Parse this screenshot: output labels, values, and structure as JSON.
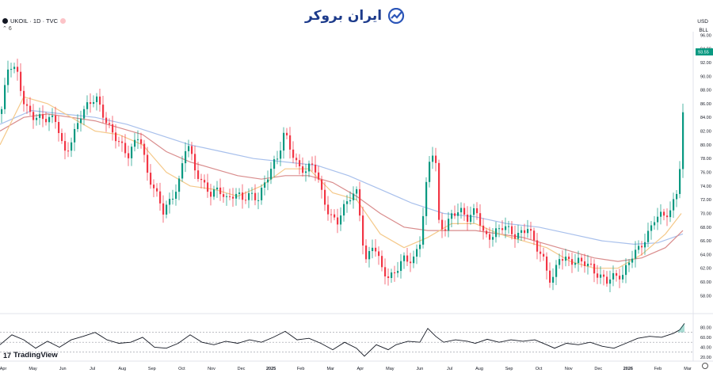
{
  "header": {
    "symbol": "UKOIL · 1D · TVC",
    "indicator_count": "6"
  },
  "brand": {
    "name": "ایران بروکر"
  },
  "currency": {
    "code": "USD",
    "unit": "BLL"
  },
  "footer": {
    "brand": "TradingView"
  },
  "colors": {
    "up": "#089981",
    "down": "#f23645",
    "ma_fast": "#f5c98a",
    "ma_mid": "#d98c8c",
    "ma_slow": "#a8c0ec",
    "osc": "#131722",
    "last_price": "#089981"
  },
  "chart_data": {
    "type": "line",
    "series": [
      {
        "name": "",
        "values": []
      }
    ],
    "ylim": [
      55.5,
      96.5
    ],
    "yticks": [
      58,
      60,
      62,
      64,
      66,
      68,
      70,
      72,
      74,
      76,
      78,
      80,
      82,
      84,
      86,
      88,
      90,
      92,
      94,
      96
    ],
    "ytick_labels": [
      "58.00",
      "60.00",
      "62.00",
      "64.00",
      "66.00",
      "68.00",
      "70.00",
      "72.00",
      "74.00",
      "76.00",
      "78.00",
      "80.00",
      "82.00",
      "84.00",
      "86.00",
      "88.00",
      "90.00",
      "92.00",
      "94.00",
      "96.00"
    ],
    "last_price": "93.55",
    "xtick_labels": [
      "Apr",
      "May",
      "Jun",
      "Jul",
      "Aug",
      "Sep",
      "Oct",
      "Nov",
      "Dec",
      "2025",
      "Feb",
      "Mar",
      "Apr",
      "May",
      "Jun",
      "Jul",
      "Aug",
      "Sep",
      "Oct",
      "Nov",
      "Dec",
      "2026",
      "Feb",
      "Mar"
    ],
    "price_points": [
      [
        0,
        84.5
      ],
      [
        10,
        91.5
      ],
      [
        20,
        90.5
      ],
      [
        30,
        86
      ],
      [
        40,
        84.5
      ],
      [
        55,
        83.5
      ],
      [
        70,
        83.5
      ],
      [
        80,
        79
      ],
      [
        90,
        81
      ],
      [
        100,
        84
      ],
      [
        110,
        85.5
      ],
      [
        120,
        87
      ],
      [
        130,
        84.5
      ],
      [
        140,
        82
      ],
      [
        150,
        80
      ],
      [
        160,
        78
      ],
      [
        175,
        82
      ],
      [
        185,
        76
      ],
      [
        195,
        73
      ],
      [
        205,
        70
      ],
      [
        215,
        72
      ],
      [
        225,
        75
      ],
      [
        235,
        81
      ],
      [
        245,
        76
      ],
      [
        255,
        74
      ],
      [
        265,
        73
      ],
      [
        275,
        74
      ],
      [
        285,
        72
      ],
      [
        295,
        72.5
      ],
      [
        305,
        72
      ],
      [
        315,
        73
      ],
      [
        325,
        72.5
      ],
      [
        340,
        76
      ],
      [
        350,
        78
      ],
      [
        358,
        82
      ],
      [
        365,
        80
      ],
      [
        375,
        77
      ],
      [
        385,
        76
      ],
      [
        395,
        77
      ],
      [
        405,
        73
      ],
      [
        415,
        70
      ],
      [
        425,
        69
      ],
      [
        440,
        72
      ],
      [
        450,
        73
      ],
      [
        460,
        63
      ],
      [
        470,
        66
      ],
      [
        480,
        62
      ],
      [
        490,
        60
      ],
      [
        500,
        62
      ],
      [
        510,
        64
      ],
      [
        520,
        63
      ],
      [
        530,
        66
      ],
      [
        540,
        77
      ],
      [
        548,
        80
      ],
      [
        552,
        69
      ],
      [
        560,
        68
      ],
      [
        570,
        70
      ],
      [
        580,
        70
      ],
      [
        590,
        69
      ],
      [
        600,
        71
      ],
      [
        610,
        67
      ],
      [
        620,
        66.5
      ],
      [
        635,
        68
      ],
      [
        650,
        67
      ],
      [
        665,
        68
      ],
      [
        675,
        65
      ],
      [
        685,
        63
      ],
      [
        695,
        60
      ],
      [
        705,
        64
      ],
      [
        715,
        63
      ],
      [
        725,
        62.5
      ],
      [
        735,
        63
      ],
      [
        745,
        62.5
      ],
      [
        755,
        61
      ],
      [
        765,
        60
      ],
      [
        775,
        60.5
      ],
      [
        785,
        61
      ],
      [
        795,
        64
      ],
      [
        805,
        65
      ],
      [
        815,
        66
      ],
      [
        825,
        69
      ],
      [
        835,
        70
      ],
      [
        845,
        70.5
      ],
      [
        855,
        74
      ],
      [
        858,
        78
      ],
      [
        862,
        86
      ],
      [
        864,
        93.5
      ]
    ],
    "ma_fast_points": [
      [
        0,
        80
      ],
      [
        30,
        87
      ],
      [
        60,
        86
      ],
      [
        90,
        84
      ],
      [
        120,
        82
      ],
      [
        150,
        81.5
      ],
      [
        180,
        80
      ],
      [
        210,
        76
      ],
      [
        240,
        74
      ],
      [
        270,
        73.5
      ],
      [
        300,
        72.5
      ],
      [
        330,
        74
      ],
      [
        360,
        76.5
      ],
      [
        390,
        76.5
      ],
      [
        420,
        73
      ],
      [
        450,
        72
      ],
      [
        480,
        67
      ],
      [
        510,
        65
      ],
      [
        540,
        66.5
      ],
      [
        570,
        68.5
      ],
      [
        600,
        68.5
      ],
      [
        630,
        67
      ],
      [
        660,
        66
      ],
      [
        690,
        65
      ],
      [
        720,
        63
      ],
      [
        750,
        62
      ],
      [
        780,
        62
      ],
      [
        810,
        64
      ],
      [
        840,
        67
      ],
      [
        860,
        70
      ]
    ],
    "ma_mid_points": [
      [
        0,
        82
      ],
      [
        30,
        84
      ],
      [
        60,
        84.5
      ],
      [
        90,
        84
      ],
      [
        120,
        83.5
      ],
      [
        150,
        82.5
      ],
      [
        180,
        81.5
      ],
      [
        210,
        79
      ],
      [
        240,
        77.5
      ],
      [
        270,
        76.5
      ],
      [
        300,
        75.5
      ],
      [
        330,
        75
      ],
      [
        360,
        75.5
      ],
      [
        390,
        75.5
      ],
      [
        420,
        74.5
      ],
      [
        450,
        72.5
      ],
      [
        480,
        70
      ],
      [
        510,
        68
      ],
      [
        540,
        67.5
      ],
      [
        570,
        67.5
      ],
      [
        600,
        67.5
      ],
      [
        630,
        67
      ],
      [
        660,
        66.5
      ],
      [
        690,
        65.5
      ],
      [
        720,
        64.5
      ],
      [
        750,
        63.5
      ],
      [
        780,
        63
      ],
      [
        810,
        63.5
      ],
      [
        840,
        65
      ],
      [
        862,
        67.5
      ]
    ],
    "ma_slow_points": [
      [
        0,
        83
      ],
      [
        40,
        85
      ],
      [
        80,
        84.5
      ],
      [
        120,
        84
      ],
      [
        160,
        83
      ],
      [
        200,
        81.5
      ],
      [
        240,
        80
      ],
      [
        280,
        79
      ],
      [
        320,
        78
      ],
      [
        360,
        77.5
      ],
      [
        400,
        77
      ],
      [
        440,
        75.5
      ],
      [
        480,
        73.5
      ],
      [
        520,
        71.5
      ],
      [
        560,
        70
      ],
      [
        600,
        69.5
      ],
      [
        640,
        68.5
      ],
      [
        680,
        68
      ],
      [
        720,
        67
      ],
      [
        760,
        66
      ],
      [
        800,
        65.5
      ],
      [
        830,
        65.7
      ],
      [
        862,
        67
      ]
    ],
    "osc_points": [
      [
        0,
        45
      ],
      [
        15,
        65
      ],
      [
        30,
        55
      ],
      [
        45,
        38
      ],
      [
        60,
        52
      ],
      [
        75,
        40
      ],
      [
        90,
        55
      ],
      [
        105,
        62
      ],
      [
        120,
        70
      ],
      [
        135,
        55
      ],
      [
        150,
        48
      ],
      [
        165,
        50
      ],
      [
        180,
        60
      ],
      [
        195,
        40
      ],
      [
        210,
        38
      ],
      [
        225,
        48
      ],
      [
        240,
        65
      ],
      [
        255,
        50
      ],
      [
        270,
        45
      ],
      [
        285,
        52
      ],
      [
        300,
        48
      ],
      [
        315,
        55
      ],
      [
        330,
        50
      ],
      [
        345,
        60
      ],
      [
        360,
        72
      ],
      [
        375,
        55
      ],
      [
        390,
        58
      ],
      [
        405,
        48
      ],
      [
        420,
        35
      ],
      [
        435,
        50
      ],
      [
        450,
        38
      ],
      [
        460,
        22
      ],
      [
        475,
        45
      ],
      [
        490,
        35
      ],
      [
        500,
        45
      ],
      [
        515,
        52
      ],
      [
        530,
        50
      ],
      [
        540,
        78
      ],
      [
        550,
        62
      ],
      [
        560,
        50
      ],
      [
        575,
        55
      ],
      [
        590,
        52
      ],
      [
        600,
        48
      ],
      [
        615,
        56
      ],
      [
        630,
        50
      ],
      [
        645,
        55
      ],
      [
        660,
        52
      ],
      [
        675,
        55
      ],
      [
        690,
        45
      ],
      [
        700,
        38
      ],
      [
        715,
        48
      ],
      [
        730,
        45
      ],
      [
        745,
        50
      ],
      [
        760,
        42
      ],
      [
        775,
        38
      ],
      [
        790,
        48
      ],
      [
        805,
        58
      ],
      [
        820,
        62
      ],
      [
        835,
        60
      ],
      [
        850,
        68
      ],
      [
        858,
        75
      ],
      [
        864,
        88
      ]
    ],
    "osc_ylim": [
      20,
      95
    ],
    "osc_yticks": [
      20,
      40,
      60,
      80
    ],
    "osc_ytick_labels": [
      "20.00",
      "40.00",
      "60.00",
      "80.00"
    ],
    "osc_levels": [
      70,
      50,
      30
    ]
  }
}
